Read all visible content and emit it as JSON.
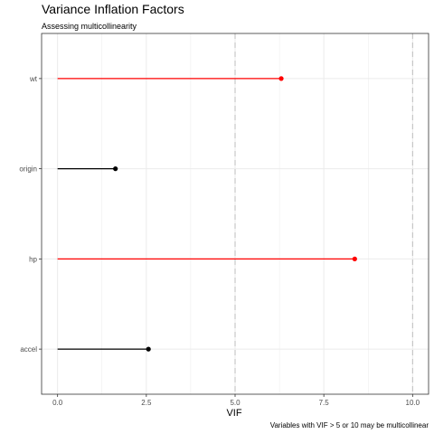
{
  "chart_data": {
    "type": "lollipop",
    "title": "Variance Inflation Factors",
    "subtitle": "Assessing multicollinearity",
    "xlabel": "VIF",
    "ylabel": "",
    "caption": "Variables with VIF > 5 or 10 may be multicollinear",
    "xlim": [
      -0.45,
      10.45
    ],
    "x_ticks": [
      {
        "value": 0,
        "label": "0.0"
      },
      {
        "value": 2.5,
        "label": "2.5"
      },
      {
        "value": 5,
        "label": "5.0"
      },
      {
        "value": 7.5,
        "label": "7.5"
      },
      {
        "value": 10,
        "label": "10.0"
      }
    ],
    "thresholds": [
      5,
      10
    ],
    "categories": [
      "wt",
      "origin",
      "hp",
      "accel"
    ],
    "values": [
      6.3,
      1.63,
      8.37,
      2.56
    ],
    "colors": {
      "high": "#ff0000",
      "normal": "#000000",
      "threshold_line": "#bebebe",
      "grid": "#ebebeb",
      "panel_border": "#333333"
    },
    "grid": true,
    "legend": "none"
  }
}
